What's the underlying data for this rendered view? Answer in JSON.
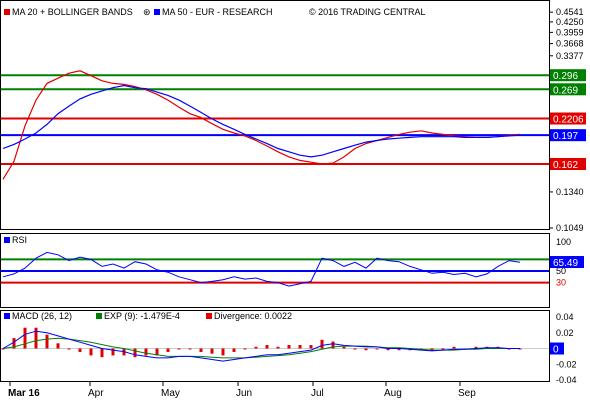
{
  "chart_data": {
    "type": "line",
    "title": "MA 20 + BOLLINGER BANDS",
    "legend": [
      {
        "icon": "red-square-icon",
        "label": "MA 20 + BOLLINGER BANDS",
        "color": "#e00000"
      },
      {
        "icon": "blue-square-icon",
        "label": "MA 50 - EUR - RESEARCH",
        "color": "#0000ff"
      }
    ],
    "copyright": "© 2016 TRADING CENTRAL",
    "x_tick_labels": [
      "Mar 16",
      "Apr",
      "May",
      "Jun",
      "Jul",
      "Aug",
      "Sep"
    ],
    "y_ticks": [
      "0.4541",
      "0.4250",
      "0.3959",
      "0.3668",
      "0.3377",
      "0.1340",
      "0.1049"
    ],
    "y_scale": "log",
    "ylim": [
      0.1049,
      0.48
    ],
    "price_panel": {
      "series": [
        {
          "name": "MA 20",
          "color": "#e00000",
          "values": [
            0.146,
            0.165,
            0.21,
            0.25,
            0.28,
            0.29,
            0.3,
            0.305,
            0.295,
            0.285,
            0.28,
            0.278,
            0.274,
            0.268,
            0.26,
            0.25,
            0.238,
            0.228,
            0.222,
            0.213,
            0.205,
            0.2,
            0.196,
            0.19,
            0.183,
            0.176,
            0.17,
            0.166,
            0.164,
            0.162,
            0.163,
            0.17,
            0.18,
            0.186,
            0.19,
            0.194,
            0.198,
            0.201,
            0.203,
            0.2,
            0.198,
            0.196,
            0.195,
            0.194,
            0.194,
            0.195,
            0.197,
            0.198
          ]
        },
        {
          "name": "MA 50",
          "color": "#0000ff",
          "values": [
            0.18,
            0.185,
            0.192,
            0.2,
            0.212,
            0.228,
            0.24,
            0.252,
            0.26,
            0.266,
            0.272,
            0.276,
            0.272,
            0.27,
            0.264,
            0.258,
            0.25,
            0.24,
            0.23,
            0.22,
            0.212,
            0.205,
            0.198,
            0.192,
            0.186,
            0.18,
            0.176,
            0.172,
            0.17,
            0.172,
            0.176,
            0.18,
            0.184,
            0.188,
            0.19,
            0.192,
            0.193,
            0.194,
            0.195,
            0.195,
            0.195,
            0.195,
            0.194,
            0.194,
            0.194,
            0.195,
            0.196,
            0.197
          ]
        }
      ],
      "horizontal_levels": [
        {
          "value": "0.296",
          "color": "#008000"
        },
        {
          "value": "0.269",
          "color": "#008000"
        },
        {
          "value": "0.2206",
          "color": "#e00000"
        },
        {
          "value": "0.197",
          "color": "#0000ff"
        },
        {
          "value": "0.162",
          "color": "#e00000"
        }
      ]
    },
    "rsi_panel": {
      "label": "RSI",
      "y_ticks": [
        "100",
        "50",
        "30"
      ],
      "ylim": [
        0,
        100
      ],
      "current_value": "65.49",
      "levels": [
        {
          "value": 70,
          "color": "#008000"
        },
        {
          "value": 50,
          "color": "#0000ff"
        },
        {
          "value": 30,
          "color": "#e00000"
        }
      ],
      "values": [
        40,
        45,
        55,
        72,
        82,
        78,
        68,
        74,
        70,
        58,
        62,
        55,
        66,
        62,
        52,
        48,
        40,
        35,
        30,
        32,
        35,
        40,
        36,
        38,
        32,
        30,
        24,
        28,
        32,
        72,
        68,
        58,
        65,
        55,
        72,
        68,
        66,
        58,
        52,
        46,
        48,
        44,
        46,
        40,
        45,
        58,
        68,
        65
      ]
    },
    "macd_panel": {
      "label": "MACD (26, 12)",
      "exp_label": "EXP (9): -1.479E-4",
      "divergence_label": "Divergence: 0.0022",
      "y_ticks": [
        "0.04",
        "0.02",
        "0",
        "-0.02",
        "-0.04"
      ],
      "ylim": [
        -0.04,
        0.04
      ],
      "current_value": "0",
      "macd_values": [
        0.0,
        0.008,
        0.018,
        0.022,
        0.02,
        0.016,
        0.012,
        0.008,
        0.004,
        0.0,
        -0.002,
        -0.004,
        -0.008,
        -0.01,
        -0.012,
        -0.012,
        -0.01,
        -0.01,
        -0.012,
        -0.014,
        -0.016,
        -0.014,
        -0.012,
        -0.01,
        -0.008,
        -0.008,
        -0.006,
        -0.004,
        -0.002,
        0.004,
        0.006,
        0.004,
        0.003,
        0.002,
        0.002,
        0.0,
        0.0,
        -0.001,
        -0.002,
        -0.003,
        -0.002,
        -0.001,
        -0.001,
        0.0,
        0.001,
        0.001,
        0.0,
        0.0
      ],
      "signal_values": [
        0.0,
        0.002,
        0.006,
        0.01,
        0.012,
        0.013,
        0.012,
        0.01,
        0.008,
        0.005,
        0.002,
        0.0,
        -0.003,
        -0.006,
        -0.008,
        -0.01,
        -0.01,
        -0.01,
        -0.01,
        -0.011,
        -0.012,
        -0.012,
        -0.012,
        -0.011,
        -0.01,
        -0.009,
        -0.008,
        -0.006,
        -0.004,
        -0.001,
        0.002,
        0.003,
        0.003,
        0.003,
        0.002,
        0.001,
        0.001,
        0.0,
        -0.001,
        -0.002,
        -0.002,
        -0.002,
        -0.001,
        -0.001,
        0.0,
        0.0,
        0.0,
        0.0
      ],
      "divergence_values": [
        0.0,
        0.006,
        0.012,
        0.012,
        0.008,
        0.003,
        0.0,
        -0.002,
        -0.004,
        -0.005,
        -0.004,
        -0.004,
        -0.005,
        -0.004,
        -0.004,
        -0.002,
        0.0,
        0.0,
        -0.002,
        -0.003,
        -0.004,
        -0.002,
        0.0,
        0.001,
        0.002,
        0.001,
        0.002,
        0.002,
        0.002,
        0.005,
        0.004,
        0.001,
        0.0,
        -0.001,
        0.0,
        -0.001,
        -0.001,
        -0.001,
        -0.001,
        -0.001,
        0.0,
        0.001,
        0.0,
        0.001,
        0.001,
        0.001,
        0.0,
        0.0
      ]
    }
  }
}
